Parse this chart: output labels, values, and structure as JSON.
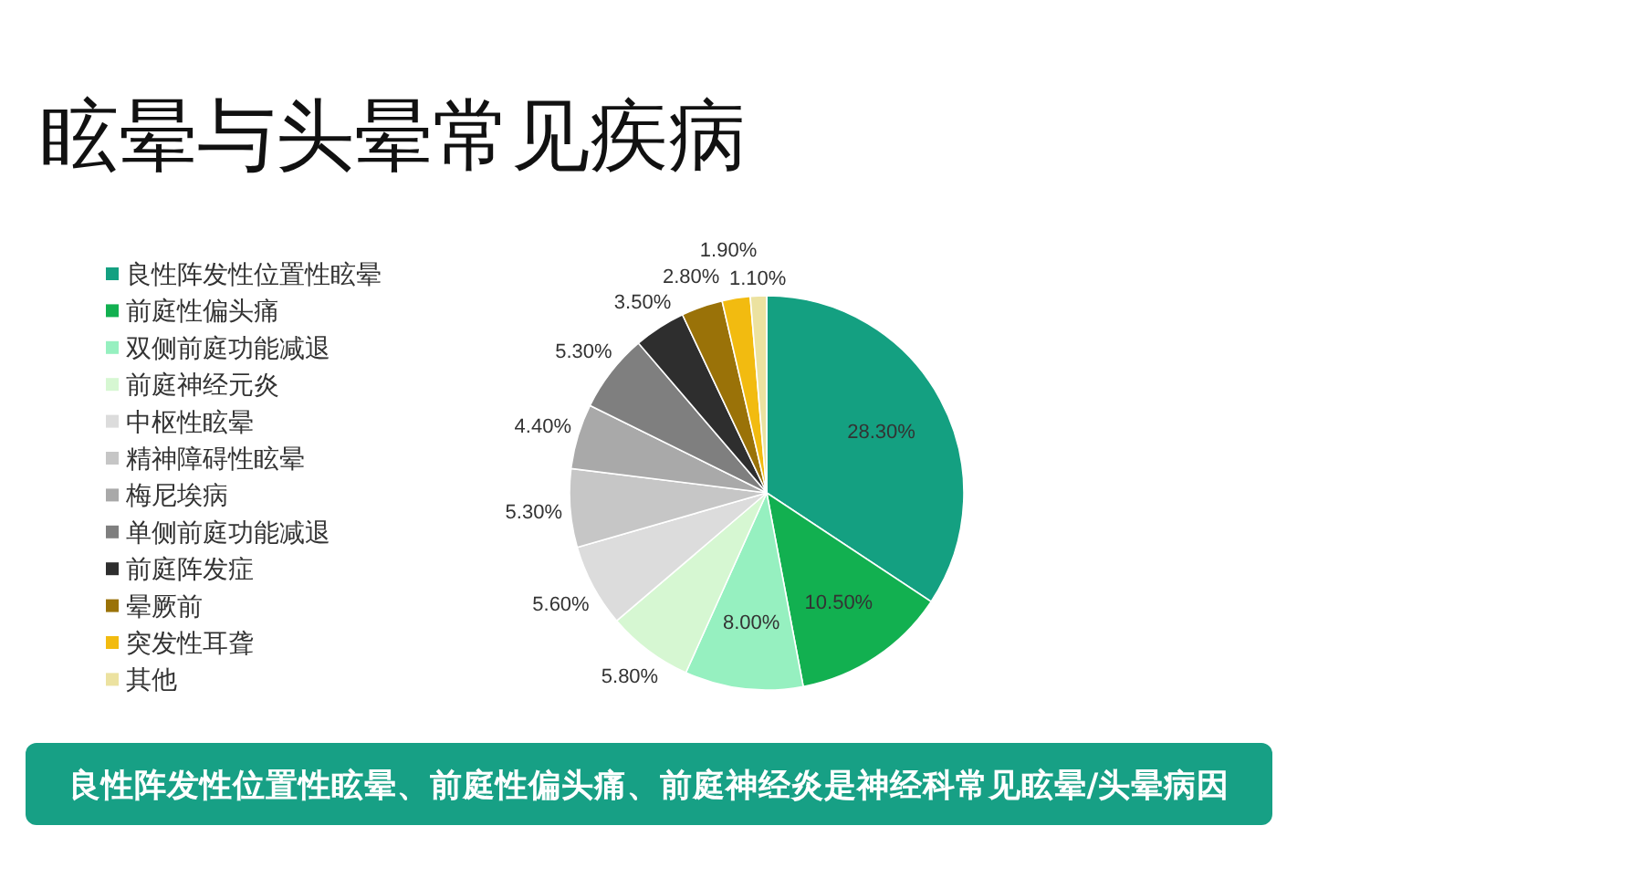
{
  "chart_data": {
    "type": "pie",
    "title": "眩晕与头晕常见疾病",
    "categories": [
      "良性阵发性位置性眩晕",
      "前庭性偏头痛",
      "双侧前庭功能减退",
      "前庭神经元炎",
      "中枢性眩晕",
      "精神障碍性眩晕",
      "梅尼埃病",
      "单侧前庭功能减退",
      "前庭阵发症",
      "晕厥前",
      "突发性耳聋",
      "其他"
    ],
    "values": [
      28.3,
      10.5,
      8.0,
      5.8,
      5.6,
      5.3,
      4.4,
      5.3,
      3.5,
      2.8,
      1.9,
      1.1
    ],
    "value_labels": [
      "28.30%",
      "10.50%",
      "8.00%",
      "5.80%",
      "5.60%",
      "5.30%",
      "4.40%",
      "5.30%",
      "3.50%",
      "2.80%",
      "1.90%",
      "1.10%"
    ],
    "colors": [
      "#14a081",
      "#12b050",
      "#96f0c0",
      "#d6f7d2",
      "#dcdcdc",
      "#c6c6c6",
      "#a9a9a9",
      "#7f7f7f",
      "#2e2e2e",
      "#9a7208",
      "#f2bb10",
      "#ece2a0"
    ],
    "legend": "left",
    "annotations": [
      "良性阵发性位置性眩晕、前庭性偏头痛、前庭神经炎是神经科常见眩晕/头晕病因"
    ]
  }
}
